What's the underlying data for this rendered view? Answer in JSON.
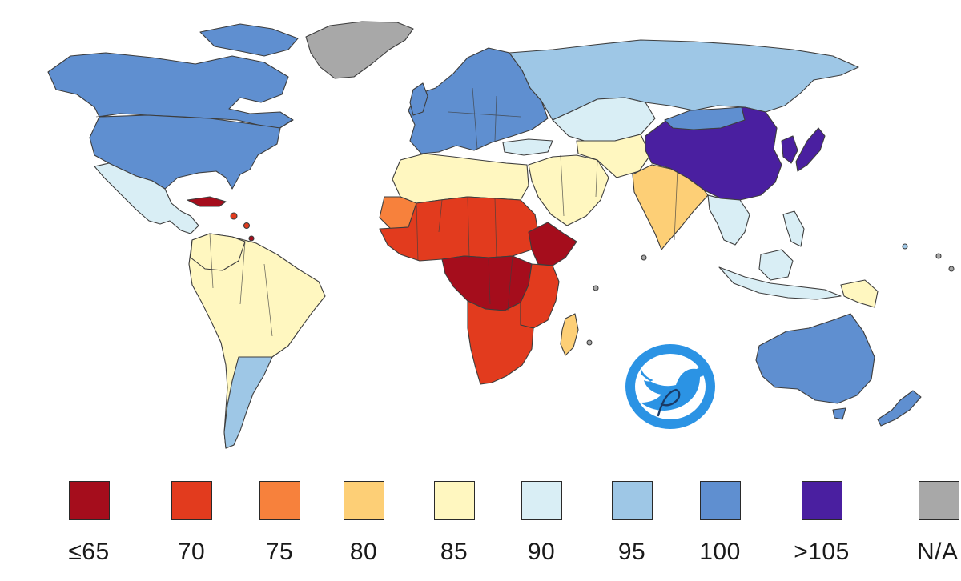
{
  "map": {
    "colors": {
      "le65": "#a50d1c",
      "c70": "#e23b1e",
      "c75": "#f7813c",
      "c80": "#fdcf76",
      "c85": "#fff7c0",
      "c90": "#d9eef5",
      "c95": "#9ec7e6",
      "c100": "#5f8fd0",
      "gt105": "#4a1fa0",
      "na": "#a8a8a8"
    }
  },
  "legend": {
    "items": [
      {
        "label": "≤65",
        "color": "#a50d1c"
      },
      {
        "label": "70",
        "color": "#e23b1e"
      },
      {
        "label": "75",
        "color": "#f7813c"
      },
      {
        "label": "80",
        "color": "#fdcf76"
      },
      {
        "label": "85",
        "color": "#fff7c0"
      },
      {
        "label": "90",
        "color": "#d9eef5"
      },
      {
        "label": "95",
        "color": "#9ec7e6"
      },
      {
        "label": "100",
        "color": "#5f8fd0"
      },
      {
        "label": ">105",
        "color": "#4a1fa0"
      },
      {
        "label": "N/A",
        "color": "#a8a8a8"
      }
    ]
  },
  "logo": {
    "icon": "bird-icon",
    "accent": "#2b93e4"
  }
}
